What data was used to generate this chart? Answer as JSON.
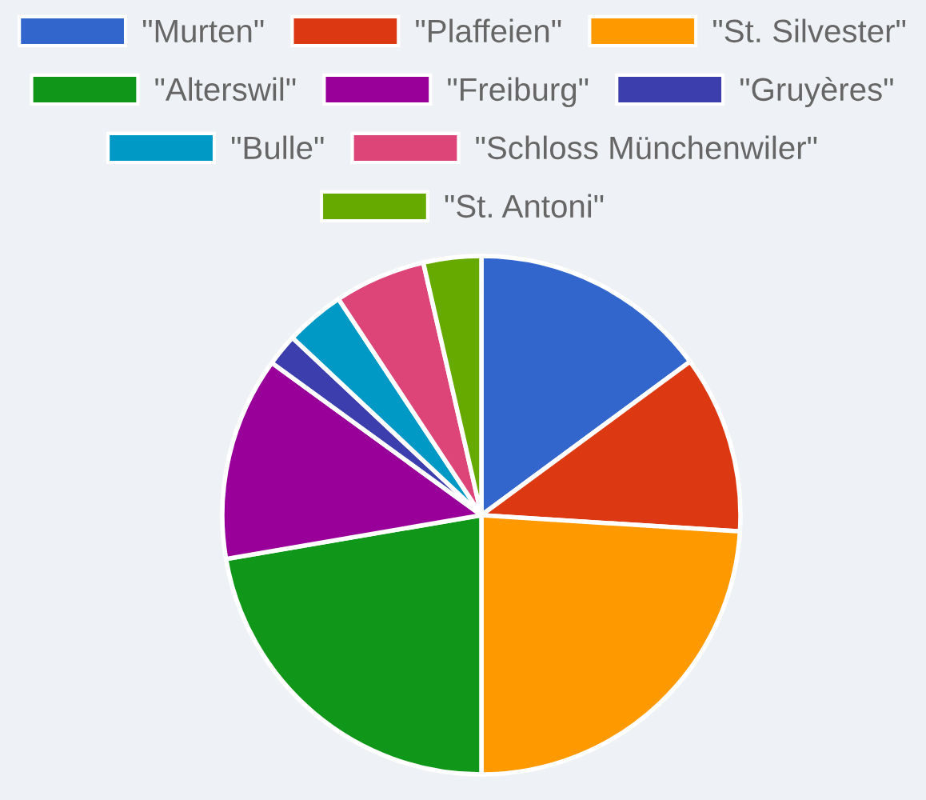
{
  "chart_data": {
    "type": "pie",
    "categories": [
      "\"Murten\"",
      "\"Plaffeien\"",
      "\"St. Silvester\"",
      "\"Alterswil\"",
      "\"Freiburg\"",
      "\"Gruyères\"",
      "\"Bulle\"",
      "\"Schloss Münchenwiler\"",
      "\"St. Antoni\""
    ],
    "values": [
      14.9,
      11.1,
      24.0,
      22.3,
      12.7,
      2.0,
      3.7,
      5.7,
      3.6
    ],
    "colors": [
      "#3366cc",
      "#dc3912",
      "#ff9900",
      "#109618",
      "#990099",
      "#3b3eac",
      "#0099c6",
      "#dd4477",
      "#66aa00"
    ],
    "legend": "top"
  }
}
